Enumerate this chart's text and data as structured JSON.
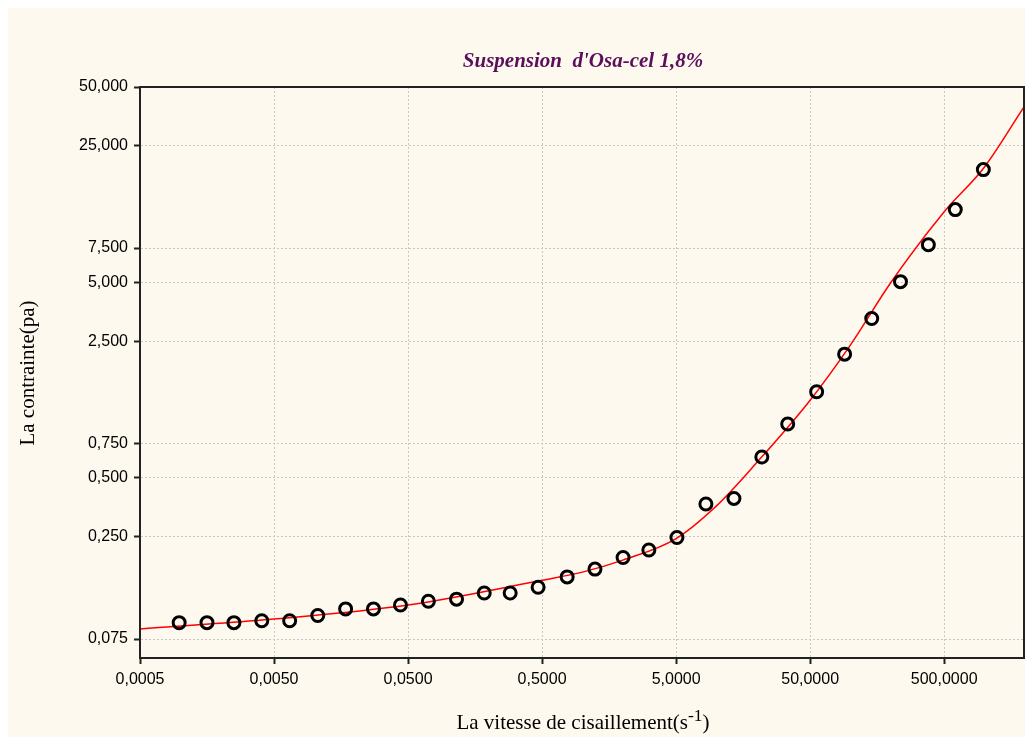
{
  "chart_data": {
    "type": "scatter",
    "title": "Suspension  d'Osa-cel 1,8%",
    "xlabel": "La vitesse de cisaillement(s$^{-1}$)",
    "ylabel": "La contrainte(pa)",
    "log": "xy",
    "grid": true,
    "legend": false,
    "marker": "circle",
    "xlim": [
      0.0005,
      1970
    ],
    "ylim": [
      0.06,
      50
    ],
    "xticks": [
      {
        "value": 0.0005,
        "label": "0,0005"
      },
      {
        "value": 0.005,
        "label": "0,0050"
      },
      {
        "value": 0.05,
        "label": "0,0500"
      },
      {
        "value": 0.5,
        "label": "0,5000"
      },
      {
        "value": 5,
        "label": "5,0000"
      },
      {
        "value": 50,
        "label": "50,0000"
      },
      {
        "value": 500,
        "label": "500,0000"
      }
    ],
    "yticks": [
      {
        "value": 0.075,
        "label": "0,075"
      },
      {
        "value": 0.25,
        "label": "0,250"
      },
      {
        "value": 0.5,
        "label": "0,500"
      },
      {
        "value": 0.75,
        "label": "0,750"
      },
      {
        "value": 2.5,
        "label": "2,500"
      },
      {
        "value": 5,
        "label": "5,000"
      },
      {
        "value": 7.5,
        "label": "7,500"
      },
      {
        "value": 25,
        "label": "25,000"
      },
      {
        "value": 50,
        "label": "50,000"
      }
    ],
    "series": [
      {
        "color": "#000000",
        "x": [
          0.00098,
          0.00158,
          0.00251,
          0.00405,
          0.00654,
          0.0106,
          0.0171,
          0.0276,
          0.0439,
          0.0709,
          0.115,
          0.185,
          0.289,
          0.467,
          0.769,
          1.24,
          2.01,
          3.13,
          5.07,
          8.34,
          13.5,
          21.8,
          34.0,
          55.9,
          90.4,
          144,
          236,
          381,
          605,
          980
        ],
        "values": [
          0.091,
          0.091,
          0.091,
          0.093,
          0.093,
          0.099,
          0.107,
          0.107,
          0.112,
          0.117,
          0.12,
          0.129,
          0.129,
          0.138,
          0.156,
          0.171,
          0.196,
          0.214,
          0.248,
          0.368,
          0.393,
          0.64,
          0.944,
          1.38,
          2.15,
          3.27,
          5.05,
          7.8,
          11.8,
          18.9
        ]
      },
      {
        "type": "line",
        "color": "#ff0000",
        "marker": "none",
        "x": [
          0.0005,
          0.005,
          0.05,
          0.5,
          1,
          2,
          5,
          10,
          20,
          50,
          100,
          200,
          500,
          1000,
          1970
        ],
        "values": [
          0.0845,
          0.095,
          0.112,
          0.15,
          0.165,
          0.19,
          0.245,
          0.36,
          0.6,
          1.25,
          2.4,
          5,
          11.5,
          19.5,
          39.6
        ]
      }
    ]
  }
}
